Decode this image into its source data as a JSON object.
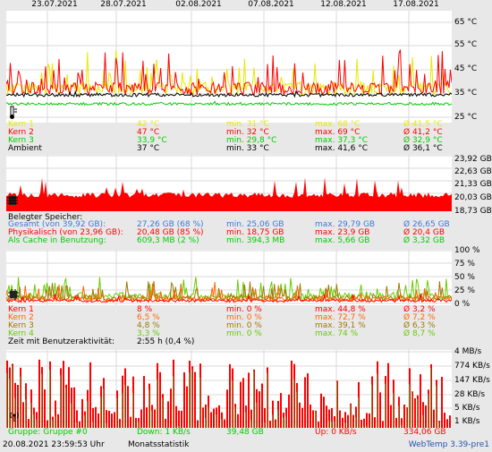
{
  "date_axis": [
    "23.07.2021",
    "28.07.2021",
    "02.08.2021",
    "07.08.2021",
    "12.08.2021",
    "17.08.2021"
  ],
  "temperature": {
    "y_labels": [
      "65 °C",
      "55 °C",
      "45 °C",
      "35 °C",
      "25 °C"
    ],
    "rows": [
      {
        "label": "Kern 1",
        "now": "42 °C",
        "min": "min. 31 °C",
        "max": "max. 68 °C",
        "avg": "Ø 41,5 °C",
        "color": "#e8e800"
      },
      {
        "label": "Kern 2",
        "now": "47 °C",
        "min": "min. 32 °C",
        "max": "max. 69 °C",
        "avg": "Ø 41,2 °C",
        "color": "#ff0000"
      },
      {
        "label": "Kern 3",
        "now": "33,9 °C",
        "min": "min. 29,8 °C",
        "max": "max. 37,3 °C",
        "avg": "Ø 32,9 °C",
        "color": "#00cc00"
      },
      {
        "label": "Ambient",
        "now": "37 °C",
        "min": "min. 33 °C",
        "max": "max. 41,6 °C",
        "avg": "Ø 36,1 °C",
        "color": "#000000"
      }
    ]
  },
  "memory": {
    "y_labels": [
      "23,92 GB",
      "22,63 GB",
      "21,33 GB",
      "20,03 GB",
      "18,73 GB"
    ],
    "title": "Belegter Speicher:",
    "rows": [
      {
        "label": "Gesamt (von 39,92 GB):",
        "now": "27,26 GB (68 %)",
        "min": "min. 25,06 GB",
        "max": "max. 29,79 GB",
        "avg": "Ø 26,65 GB",
        "color": "#3a7ad8"
      },
      {
        "label": "Physikalisch (von 23,96 GB):",
        "now": "20,48 GB (85 %)",
        "min": "min. 18,75 GB",
        "max": "max. 23,9 GB",
        "avg": "Ø 20,4 GB",
        "color": "#ff0000"
      },
      {
        "label": "Als Cache in Benutzung:",
        "now": "609,3 MB (2 %)",
        "min": "min. 394,3 MB",
        "max": "max. 5,66 GB",
        "avg": "Ø 3,32 GB",
        "color": "#00cc00"
      }
    ]
  },
  "cpu": {
    "y_labels": [
      "100 %",
      "75 %",
      "50 %",
      "25 %",
      "0 %"
    ],
    "rows": [
      {
        "label": "Kern 1",
        "now": "8 %",
        "min": "min. 0 %",
        "max": "max. 44,8 %",
        "avg": "Ø 3,2 %",
        "color": "#ff0000"
      },
      {
        "label": "Kern 2",
        "now": "6,5 %",
        "min": "min. 0 %",
        "max": "max. 72,7 %",
        "avg": "Ø 7,2 %",
        "color": "#ff6600"
      },
      {
        "label": "Kern 3",
        "now": "4,8 %",
        "min": "min. 0 %",
        "max": "max. 39,1 %",
        "avg": "Ø 6,3 %",
        "color": "#a07800"
      },
      {
        "label": "Kern 4",
        "now": "3,3 %",
        "min": "min. 0 %",
        "max": "max. 74 %",
        "avg": "Ø 8,7 %",
        "color": "#66cc00"
      }
    ],
    "activity_label": "Zeit mit Benutzeraktivität:",
    "activity_value": "2:55 h (0,4 %)"
  },
  "network": {
    "y_labels": [
      "4 MB/s",
      "774 KB/s",
      "147 KB/s",
      "28 KB/s",
      "5 KB/s",
      "1 KB/s"
    ],
    "row": {
      "label": "Gruppe: Gruppe #0",
      "down": "Down: 1 KB/s",
      "down_avg": "39,48 GB",
      "up": "Up: 0 KB/s",
      "up_avg": "334,06 GB",
      "color_down": "#00cc00",
      "color_up": "#ff0000"
    }
  },
  "footer": {
    "timestamp": "20.08.2021 23:59:53 Uhr",
    "mode": "Monatsstatistik",
    "app": "WebTemp 3.39-pre1"
  },
  "colors": {
    "grid": "#d8d8d8",
    "link": "#2255aa"
  }
}
